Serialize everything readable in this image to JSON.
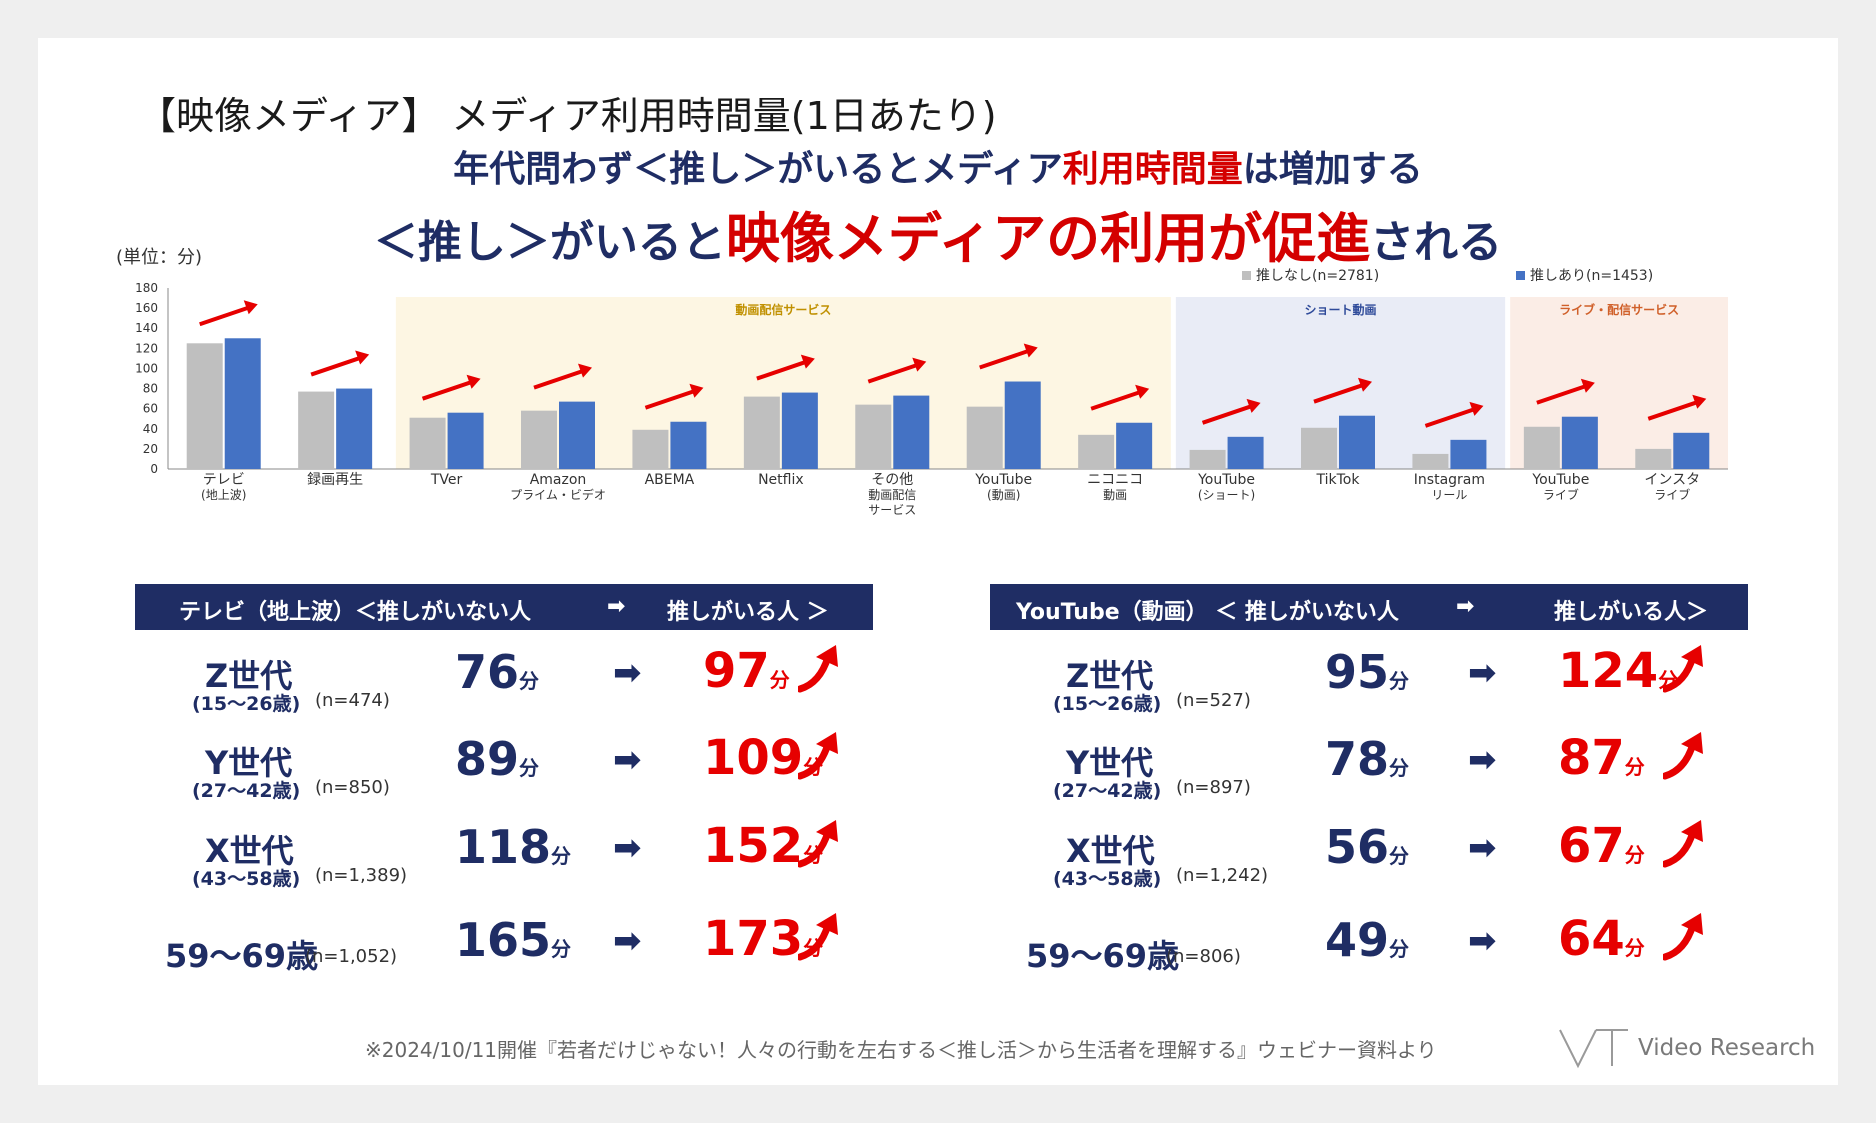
{
  "title": "【映像メディア】 メディア利用時間量(1日あたり)",
  "headline1": {
    "part1": "年代問わず＜推し＞がいるとメディア",
    "part2": "利用時間量",
    "part3": "は増加する"
  },
  "headline2": {
    "part1": "＜推し＞がいると",
    "part2": "映像メディアの利用が促進",
    "part3": "される"
  },
  "unit_note": "(単位：分)",
  "colors": {
    "navy": "#1f2d64",
    "red": "#e60000",
    "gray_bar": "#bfbfbf",
    "blue_bar": "#4472c4",
    "bg_video": "#fdf6e3",
    "bg_short": "#e9ecf6",
    "bg_live": "#fbede6"
  },
  "chart_data": {
    "type": "bar",
    "ylim": [
      0,
      180
    ],
    "yticks": [
      0,
      20,
      40,
      60,
      80,
      100,
      120,
      140,
      160,
      180
    ],
    "categories": [
      [
        "テレビ",
        "(地上波)"
      ],
      [
        "録画再生"
      ],
      [
        "TVer"
      ],
      [
        "Amazon",
        "プライム・ビデオ"
      ],
      [
        "ABEMA"
      ],
      [
        "Netflix"
      ],
      [
        "その他",
        "動画配信",
        "サービス"
      ],
      [
        "YouTube",
        "(動画)"
      ],
      [
        "ニコニコ",
        "動画"
      ],
      [
        "YouTube",
        "(ショート)"
      ],
      [
        "TikTok"
      ],
      [
        "Instagram",
        "リール"
      ],
      [
        "YouTube",
        "ライブ"
      ],
      [
        "インスタ",
        "ライブ"
      ]
    ],
    "series": [
      {
        "name": "推しなし(n=2781)",
        "values": [
          125,
          77,
          51,
          58,
          39,
          72,
          64,
          62,
          34,
          19,
          41,
          15,
          42,
          20
        ]
      },
      {
        "name": "推しあり(n=1453)",
        "values": [
          130,
          80,
          56,
          67,
          47,
          76,
          73,
          87,
          46,
          32,
          53,
          29,
          52,
          36
        ]
      }
    ],
    "groups": [
      {
        "label": "動画配信サービス",
        "start": 2,
        "end": 8,
        "color": "#c09000"
      },
      {
        "label": "ショート動画",
        "start": 9,
        "end": 11,
        "color": "#2f4b9a"
      },
      {
        "label": "ライブ・配信サービス",
        "start": 12,
        "end": 13,
        "color": "#d0602a"
      }
    ]
  },
  "tables": [
    {
      "header": {
        "media": "テレビ（地上波）＜推しがいない人",
        "arrow": "➡",
        "right": "推しがいる人 ＞"
      },
      "rows": [
        {
          "gen": "Z世代",
          "age": "(15～26歳)",
          "n": "(n=474)",
          "before": "76",
          "after": "97"
        },
        {
          "gen": "Y世代",
          "age": "(27～42歳)",
          "n": "(n=850)",
          "before": "89",
          "after": "109"
        },
        {
          "gen": "X世代",
          "age": "(43～58歳)",
          "n": "(n=1,389)",
          "before": "118",
          "after": "152"
        },
        {
          "gen": "59～69歳",
          "age": "",
          "n": "(n=1,052)",
          "before": "165",
          "after": "173"
        }
      ]
    },
    {
      "header": {
        "media": "YouTube（動画） ＜ 推しがいない人",
        "arrow": "➡",
        "right": "推しがいる人＞"
      },
      "rows": [
        {
          "gen": "Z世代",
          "age": "(15～26歳)",
          "n": "(n=527)",
          "before": "95",
          "after": "124"
        },
        {
          "gen": "Y世代",
          "age": "(27～42歳)",
          "n": "(n=897)",
          "before": "78",
          "after": "87"
        },
        {
          "gen": "X世代",
          "age": "(43～58歳)",
          "n": "(n=1,242)",
          "before": "56",
          "after": "67"
        },
        {
          "gen": "59～69歳",
          "age": "",
          "n": "(n=806)",
          "before": "49",
          "after": "64"
        }
      ]
    }
  ],
  "unit": "分",
  "row_arrow": "➡",
  "footnote": "※2024/10/11開催『若者だけじゃない！人々の行動を左右する＜推し活＞から生活者を理解する』ウェビナー資料より",
  "logo": "Video Research"
}
